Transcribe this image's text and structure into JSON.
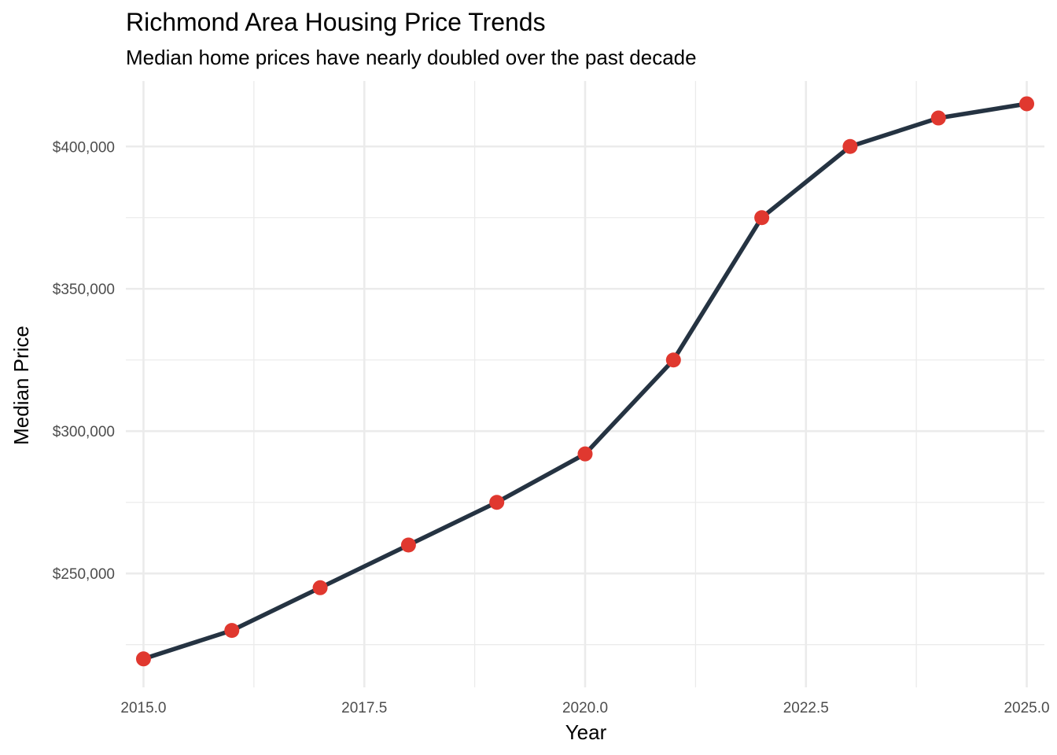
{
  "chart_data": {
    "type": "line",
    "title": "Richmond Area Housing Price Trends",
    "subtitle": "Median home prices have nearly doubled over the past decade",
    "xlabel": "Year",
    "ylabel": "Median Price",
    "xlim": [
      2014.8,
      2025.2
    ],
    "ylim": [
      210000,
      423000
    ],
    "x_ticks": [
      2015.0,
      2017.5,
      2020.0,
      2022.5,
      2025.0
    ],
    "x_tick_labels": [
      "2015.0",
      "2017.5",
      "2020.0",
      "2022.5",
      "2025.0"
    ],
    "x_minor_ticks": [
      2016.25,
      2018.75,
      2021.25,
      2023.75
    ],
    "y_ticks": [
      250000,
      300000,
      350000,
      400000
    ],
    "y_tick_labels": [
      "$250,000",
      "$300,000",
      "$350,000",
      "$400,000"
    ],
    "y_minor_ticks": [
      225000,
      275000,
      325000,
      375000
    ],
    "grid": true,
    "series": [
      {
        "x": [
          2015,
          2016,
          2017,
          2018,
          2019,
          2020,
          2021,
          2022,
          2023,
          2024,
          2025
        ],
        "y": [
          220000,
          230000,
          245000,
          260000,
          275000,
          292000,
          325000,
          375000,
          400000,
          410000,
          415000
        ],
        "line_color": "#253342",
        "point_color": "#e0382f"
      }
    ],
    "grid_color": "#ebebeb"
  }
}
